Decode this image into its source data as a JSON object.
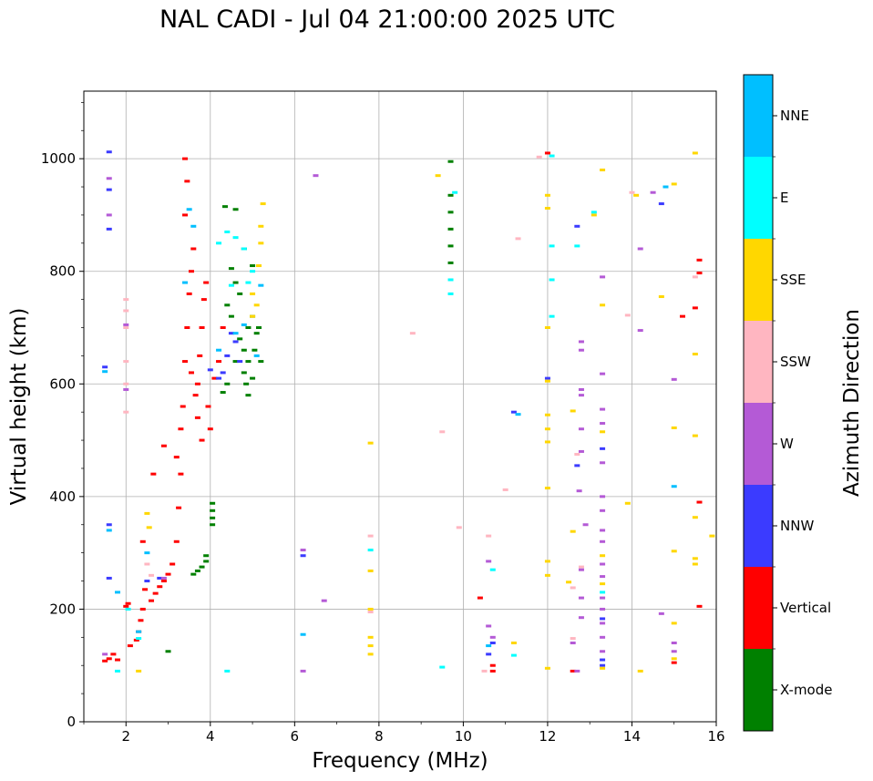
{
  "chart_data": {
    "type": "scatter",
    "title": "NAL CADI - Jul 04 21:00:00 2025 UTC",
    "xlabel": "Frequency (MHz)",
    "ylabel": "Virtual height (km)",
    "xlim": [
      1,
      16
    ],
    "ylim": [
      0,
      1120
    ],
    "xticks": [
      2,
      4,
      6,
      8,
      10,
      12,
      14,
      16
    ],
    "yticks": [
      0,
      200,
      400,
      600,
      800,
      1000
    ],
    "grid": true,
    "colorbar": {
      "label": "Azimuth Direction",
      "categories": [
        {
          "name": "X-mode",
          "color": "#008000"
        },
        {
          "name": "Vertical",
          "color": "#ff0000"
        },
        {
          "name": "NNW",
          "color": "#3b3bff"
        },
        {
          "name": "W",
          "color": "#b45ad6"
        },
        {
          "name": "SSW",
          "color": "#ffb6c1"
        },
        {
          "name": "SSE",
          "color": "#ffd700"
        },
        {
          "name": "E",
          "color": "#00ffff"
        },
        {
          "name": "NNE",
          "color": "#00bfff"
        }
      ]
    },
    "series": [
      {
        "name": "X-mode",
        "points": [
          [
            3.0,
            125
          ],
          [
            3.6,
            262
          ],
          [
            3.7,
            268
          ],
          [
            3.8,
            275
          ],
          [
            3.9,
            285
          ],
          [
            3.9,
            295
          ],
          [
            4.05,
            350
          ],
          [
            4.05,
            362
          ],
          [
            4.05,
            375
          ],
          [
            4.05,
            388
          ],
          [
            4.3,
            585
          ],
          [
            4.4,
            600
          ],
          [
            4.6,
            640
          ],
          [
            4.8,
            660
          ],
          [
            4.9,
            700
          ],
          [
            5.0,
            720
          ],
          [
            5.1,
            690
          ],
          [
            5.2,
            640
          ],
          [
            4.5,
            720
          ],
          [
            4.7,
            680
          ],
          [
            4.85,
            600
          ],
          [
            5.0,
            610
          ],
          [
            4.9,
            580
          ],
          [
            4.7,
            760
          ],
          [
            4.6,
            780
          ],
          [
            4.5,
            805
          ],
          [
            4.35,
            915
          ],
          [
            4.6,
            910
          ],
          [
            4.8,
            840
          ],
          [
            5.0,
            810
          ],
          [
            4.4,
            740
          ],
          [
            4.8,
            620
          ],
          [
            4.9,
            640
          ],
          [
            5.05,
            660
          ],
          [
            5.15,
            700
          ],
          [
            9.7,
            995
          ],
          [
            9.7,
            935
          ],
          [
            9.7,
            905
          ],
          [
            9.7,
            875
          ],
          [
            9.7,
            845
          ],
          [
            9.7,
            815
          ]
        ]
      },
      {
        "name": "Vertical",
        "points": [
          [
            1.5,
            108
          ],
          [
            1.6,
            112
          ],
          [
            1.7,
            120
          ],
          [
            1.8,
            110
          ],
          [
            2.1,
            135
          ],
          [
            2.25,
            145
          ],
          [
            2.3,
            160
          ],
          [
            2.35,
            180
          ],
          [
            2.4,
            200
          ],
          [
            2.0,
            205
          ],
          [
            2.05,
            210
          ],
          [
            2.45,
            235
          ],
          [
            2.6,
            215
          ],
          [
            2.7,
            228
          ],
          [
            2.8,
            240
          ],
          [
            2.9,
            250
          ],
          [
            3.0,
            262
          ],
          [
            3.1,
            280
          ],
          [
            3.2,
            320
          ],
          [
            3.25,
            380
          ],
          [
            3.3,
            440
          ],
          [
            3.3,
            520
          ],
          [
            3.2,
            470
          ],
          [
            3.35,
            560
          ],
          [
            3.4,
            640
          ],
          [
            3.45,
            700
          ],
          [
            3.5,
            760
          ],
          [
            3.55,
            800
          ],
          [
            3.6,
            840
          ],
          [
            3.4,
            900
          ],
          [
            3.45,
            960
          ],
          [
            3.4,
            1000
          ],
          [
            3.55,
            620
          ],
          [
            3.65,
            580
          ],
          [
            3.7,
            600
          ],
          [
            3.75,
            650
          ],
          [
            3.8,
            700
          ],
          [
            3.85,
            750
          ],
          [
            3.9,
            780
          ],
          [
            3.95,
            560
          ],
          [
            4.0,
            520
          ],
          [
            4.1,
            610
          ],
          [
            4.2,
            640
          ],
          [
            4.3,
            700
          ],
          [
            3.7,
            540
          ],
          [
            3.8,
            500
          ],
          [
            2.9,
            490
          ],
          [
            2.65,
            440
          ],
          [
            2.4,
            320
          ],
          [
            10.4,
            220
          ],
          [
            10.7,
            90
          ],
          [
            10.7,
            100
          ],
          [
            12.6,
            90
          ],
          [
            15.0,
            105
          ],
          [
            15.2,
            720
          ],
          [
            15.5,
            735
          ],
          [
            15.6,
            820
          ],
          [
            15.6,
            797
          ],
          [
            15.6,
            390
          ],
          [
            15.6,
            205
          ],
          [
            12.0,
            1010
          ]
        ]
      },
      {
        "name": "NNW",
        "points": [
          [
            1.5,
            630
          ],
          [
            1.6,
            255
          ],
          [
            1.6,
            350
          ],
          [
            1.6,
            875
          ],
          [
            1.6,
            945
          ],
          [
            1.6,
            1012
          ],
          [
            2.5,
            250
          ],
          [
            2.8,
            255
          ],
          [
            4.0,
            625
          ],
          [
            4.2,
            610
          ],
          [
            4.4,
            650
          ],
          [
            4.6,
            675
          ],
          [
            4.5,
            690
          ],
          [
            4.3,
            620
          ],
          [
            4.7,
            640
          ],
          [
            10.6,
            120
          ],
          [
            10.7,
            140
          ],
          [
            12.7,
            880
          ],
          [
            12.7,
            455
          ],
          [
            13.3,
            485
          ],
          [
            13.3,
            100
          ],
          [
            13.3,
            110
          ],
          [
            14.7,
            920
          ],
          [
            12.0,
            610
          ],
          [
            11.2,
            550
          ],
          [
            6.2,
            295
          ],
          [
            13.3,
            183
          ]
        ]
      },
      {
        "name": "W",
        "points": [
          [
            1.5,
            120
          ],
          [
            1.6,
            900
          ],
          [
            1.6,
            965
          ],
          [
            2.0,
            590
          ],
          [
            2.0,
            705
          ],
          [
            2.9,
            255
          ],
          [
            6.2,
            90
          ],
          [
            6.2,
            305
          ],
          [
            6.5,
            970
          ],
          [
            6.7,
            215
          ],
          [
            10.6,
            170
          ],
          [
            10.7,
            150
          ],
          [
            10.6,
            285
          ],
          [
            12.6,
            140
          ],
          [
            12.7,
            90
          ],
          [
            12.75,
            410
          ],
          [
            12.8,
            480
          ],
          [
            12.8,
            520
          ],
          [
            12.8,
            660
          ],
          [
            12.8,
            675
          ],
          [
            12.8,
            590
          ],
          [
            12.8,
            580
          ],
          [
            12.9,
            350
          ],
          [
            12.8,
            270
          ],
          [
            12.8,
            220
          ],
          [
            12.8,
            185
          ],
          [
            13.3,
            790
          ],
          [
            13.3,
            618
          ],
          [
            13.3,
            555
          ],
          [
            13.3,
            530
          ],
          [
            13.3,
            460
          ],
          [
            13.3,
            400
          ],
          [
            13.3,
            375
          ],
          [
            13.3,
            340
          ],
          [
            13.3,
            320
          ],
          [
            13.3,
            280
          ],
          [
            13.3,
            258
          ],
          [
            13.3,
            220
          ],
          [
            13.3,
            200
          ],
          [
            13.3,
            175
          ],
          [
            13.3,
            150
          ],
          [
            13.3,
            125
          ],
          [
            14.2,
            840
          ],
          [
            14.2,
            695
          ],
          [
            14.5,
            940
          ],
          [
            14.7,
            192
          ],
          [
            15.0,
            608
          ],
          [
            15.0,
            140
          ],
          [
            15.0,
            125
          ]
        ]
      },
      {
        "name": "SSW",
        "points": [
          [
            2.0,
            550
          ],
          [
            2.0,
            600
          ],
          [
            2.0,
            640
          ],
          [
            2.0,
            700
          ],
          [
            2.0,
            730
          ],
          [
            2.0,
            750
          ],
          [
            2.5,
            280
          ],
          [
            2.6,
            260
          ],
          [
            8.8,
            690
          ],
          [
            9.5,
            515
          ],
          [
            9.9,
            345
          ],
          [
            10.5,
            90
          ],
          [
            10.6,
            330
          ],
          [
            11.3,
            858
          ],
          [
            11.8,
            1003
          ],
          [
            12.6,
            148
          ],
          [
            12.6,
            238
          ],
          [
            12.7,
            475
          ],
          [
            12.8,
            275
          ],
          [
            13.9,
            722
          ],
          [
            14.0,
            940
          ],
          [
            15.5,
            790
          ],
          [
            7.8,
            195
          ],
          [
            7.8,
            330
          ],
          [
            11.0,
            412
          ]
        ]
      },
      {
        "name": "SSE",
        "points": [
          [
            2.3,
            90
          ],
          [
            2.5,
            370
          ],
          [
            2.55,
            345
          ],
          [
            5.2,
            880
          ],
          [
            5.2,
            850
          ],
          [
            5.25,
            920
          ],
          [
            5.15,
            810
          ],
          [
            5.0,
            760
          ],
          [
            5.1,
            740
          ],
          [
            5.0,
            720
          ],
          [
            7.8,
            120
          ],
          [
            7.8,
            135
          ],
          [
            7.8,
            150
          ],
          [
            7.8,
            200
          ],
          [
            7.8,
            268
          ],
          [
            7.8,
            495
          ],
          [
            9.4,
            970
          ],
          [
            11.2,
            140
          ],
          [
            12.0,
            935
          ],
          [
            12.0,
            912
          ],
          [
            12.0,
            700
          ],
          [
            12.0,
            605
          ],
          [
            12.0,
            545
          ],
          [
            12.0,
            520
          ],
          [
            12.0,
            497
          ],
          [
            12.0,
            415
          ],
          [
            12.0,
            285
          ],
          [
            12.0,
            260
          ],
          [
            12.0,
            95
          ],
          [
            12.5,
            248
          ],
          [
            12.6,
            552
          ],
          [
            12.6,
            338
          ],
          [
            13.1,
            900
          ],
          [
            13.3,
            980
          ],
          [
            13.3,
            740
          ],
          [
            13.3,
            515
          ],
          [
            13.3,
            295
          ],
          [
            13.3,
            245
          ],
          [
            13.3,
            95
          ],
          [
            13.9,
            388
          ],
          [
            14.1,
            935
          ],
          [
            14.2,
            90
          ],
          [
            14.7,
            755
          ],
          [
            15.0,
            955
          ],
          [
            15.0,
            522
          ],
          [
            15.0,
            303
          ],
          [
            15.0,
            175
          ],
          [
            15.0,
            112
          ],
          [
            15.5,
            1010
          ],
          [
            15.5,
            653
          ],
          [
            15.5,
            508
          ],
          [
            15.5,
            363
          ],
          [
            15.5,
            290
          ],
          [
            15.5,
            280
          ],
          [
            15.9,
            330
          ]
        ]
      },
      {
        "name": "E",
        "points": [
          [
            1.8,
            90
          ],
          [
            2.05,
            200
          ],
          [
            2.3,
            148
          ],
          [
            4.4,
            90
          ],
          [
            4.5,
            775
          ],
          [
            4.9,
            780
          ],
          [
            5.0,
            800
          ],
          [
            4.2,
            850
          ],
          [
            4.4,
            870
          ],
          [
            4.6,
            860
          ],
          [
            4.8,
            840
          ],
          [
            9.5,
            97
          ],
          [
            9.7,
            760
          ],
          [
            9.7,
            785
          ],
          [
            10.7,
            270
          ],
          [
            11.2,
            118
          ],
          [
            12.1,
            845
          ],
          [
            12.1,
            785
          ],
          [
            12.1,
            720
          ],
          [
            12.7,
            845
          ],
          [
            13.1,
            905
          ],
          [
            13.3,
            230
          ],
          [
            9.8,
            940
          ],
          [
            12.1,
            1005
          ],
          [
            7.8,
            305
          ]
        ]
      },
      {
        "name": "NNE",
        "points": [
          [
            1.5,
            622
          ],
          [
            1.6,
            340
          ],
          [
            1.8,
            230
          ],
          [
            2.3,
            160
          ],
          [
            2.5,
            300
          ],
          [
            3.4,
            780
          ],
          [
            3.5,
            910
          ],
          [
            3.6,
            880
          ],
          [
            4.2,
            660
          ],
          [
            4.6,
            690
          ],
          [
            4.8,
            705
          ],
          [
            5.1,
            650
          ],
          [
            5.2,
            775
          ],
          [
            6.2,
            155
          ],
          [
            11.3,
            546
          ],
          [
            14.8,
            950
          ],
          [
            15.0,
            418
          ],
          [
            10.6,
            135
          ]
        ]
      }
    ]
  }
}
